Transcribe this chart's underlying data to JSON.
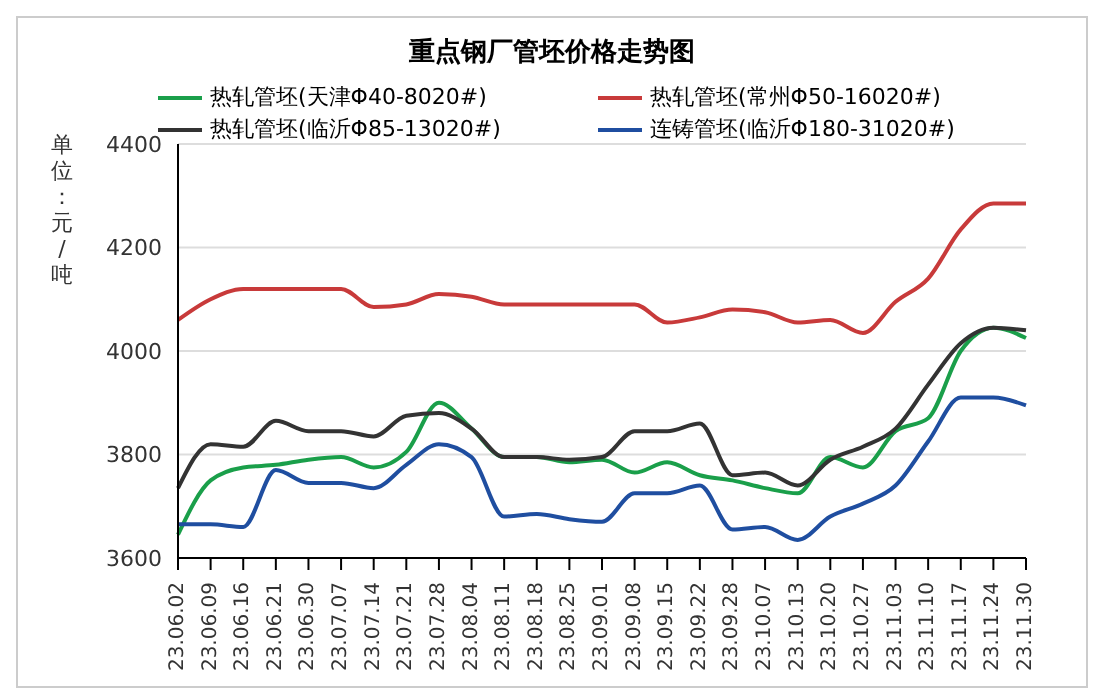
{
  "chart_data": {
    "type": "line",
    "title": "重点钢厂管坯价格走势图",
    "ylabel": "单位：元/吨",
    "categories": [
      "23.06.02",
      "23.06.09",
      "23.06.16",
      "23.06.21",
      "23.06.30",
      "23.07.07",
      "23.07.14",
      "23.07.21",
      "23.07.28",
      "23.08.04",
      "23.08.11",
      "23.08.18",
      "23.08.25",
      "23.09.01",
      "23.09.08",
      "23.09.15",
      "23.09.22",
      "23.09.28",
      "23.10.07",
      "23.10.13",
      "23.10.20",
      "23.10.27",
      "23.11.03",
      "23.11.10",
      "23.11.17",
      "23.11.24",
      "23.11.30"
    ],
    "series": [
      {
        "name": "热轧管坯(天津Φ40-8020#)",
        "color": "#1a9f4a",
        "values": [
          3645,
          3750,
          3775,
          3780,
          3790,
          3795,
          3775,
          3805,
          3900,
          3850,
          3795,
          3795,
          3785,
          3790,
          3765,
          3785,
          3760,
          3750,
          3735,
          3725,
          3795,
          3775,
          3845,
          3870,
          4000,
          4045,
          4025
        ]
      },
      {
        "name": "热轧管坯(常州Φ50-16020#)",
        "color": "#c83a3a",
        "values": [
          4060,
          4100,
          4120,
          4120,
          4120,
          4120,
          4085,
          4090,
          4110,
          4105,
          4090,
          4090,
          4090,
          4090,
          4090,
          4055,
          4065,
          4080,
          4075,
          4055,
          4060,
          4035,
          4095,
          4140,
          4235,
          4285,
          4285
        ]
      },
      {
        "name": "热轧管坯(临沂Φ85-13020#)",
        "color": "#333333",
        "values": [
          3735,
          3820,
          3815,
          3865,
          3845,
          3845,
          3835,
          3875,
          3880,
          3850,
          3795,
          3795,
          3790,
          3795,
          3845,
          3845,
          3860,
          3760,
          3765,
          3740,
          3790,
          3815,
          3850,
          3935,
          4015,
          4045,
          4040
        ]
      },
      {
        "name": "连铸管坯(临沂Φ180-31020#)",
        "color": "#1f4ea0",
        "values": [
          3665,
          3665,
          3660,
          3770,
          3745,
          3745,
          3735,
          3780,
          3820,
          3795,
          3680,
          3685,
          3675,
          3670,
          3725,
          3725,
          3740,
          3655,
          3660,
          3635,
          3680,
          3705,
          3740,
          3825,
          3910,
          3910,
          3895
        ]
      }
    ],
    "ylim": [
      3600,
      4400
    ],
    "yticks": [
      3600,
      3800,
      4000,
      4200,
      4400
    ],
    "grid": "y",
    "legend": "top",
    "marker": "none",
    "line_style": "solid"
  }
}
